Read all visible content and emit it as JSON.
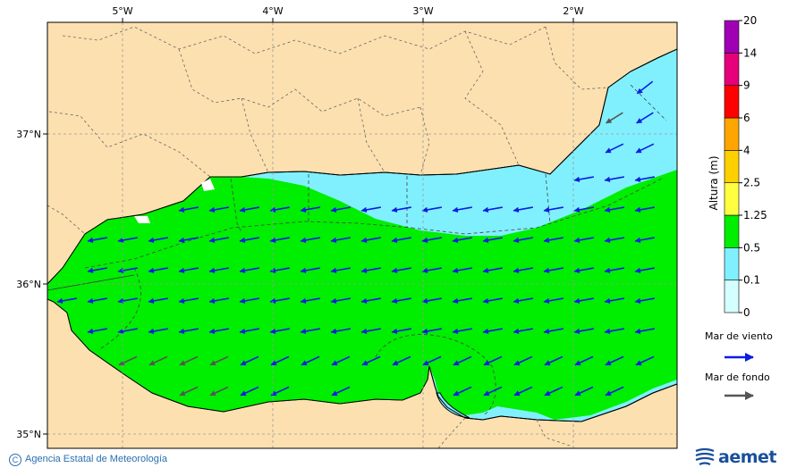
{
  "map": {
    "lon_ticks": [
      "5°W",
      "4°W",
      "3°W",
      "2°W"
    ],
    "lat_ticks": [
      "37°N",
      "36°N",
      "35°N"
    ]
  },
  "scale": {
    "title": "Altura (m)",
    "levels": [
      "0",
      "0.1",
      "0.5",
      "1.25",
      "2.5",
      "4",
      "6",
      "9",
      "14",
      "20"
    ],
    "colors": [
      "#d4ffff",
      "#80f0ff",
      "#00ee00",
      "#ffff40",
      "#ffd000",
      "#ffa500",
      "#ff0000",
      "#e6007a",
      "#a000b4"
    ]
  },
  "legend": {
    "wind_sea_label": "Mar de viento",
    "swell_label": "Mar de fondo",
    "wind_sea_color": "#0a1ee0",
    "swell_color": "#555555"
  },
  "footer": {
    "credit": "Agencia Estatal de Meteorología",
    "logo_text": "aemet"
  },
  "colors": {
    "land": "#fde0b0",
    "wave_low": "#80f0ff",
    "wave_mid": "#00ee00"
  }
}
